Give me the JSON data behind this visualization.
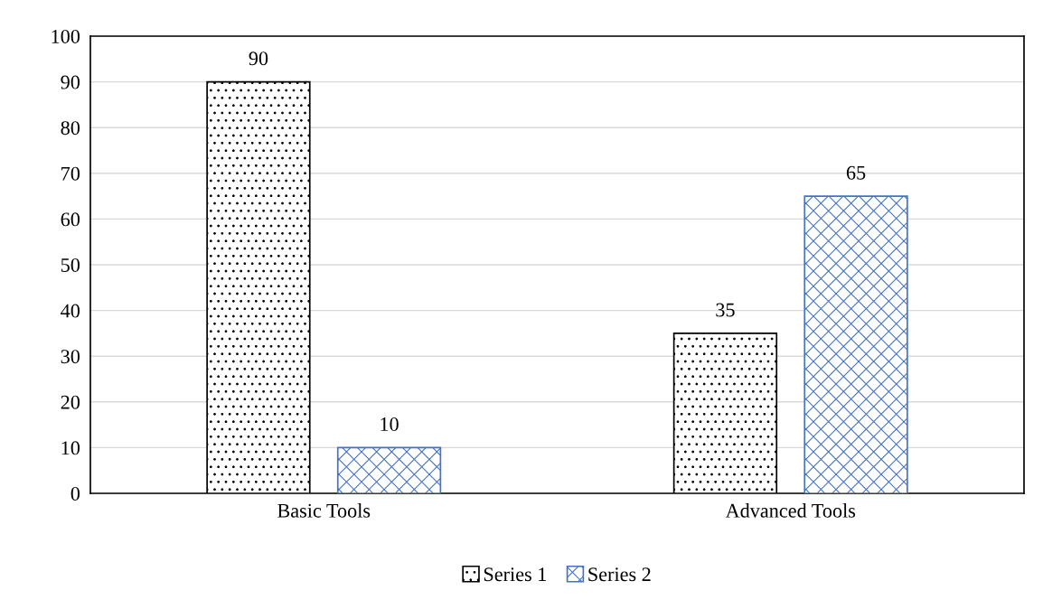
{
  "chart_data": {
    "type": "bar",
    "categories": [
      "Basic Tools",
      "Advanced Tools"
    ],
    "series": [
      {
        "name": "Series 1",
        "color": "#000000",
        "values": [
          90,
          35
        ]
      },
      {
        "name": "Series 2",
        "color": "#4472c4",
        "values": [
          10,
          65
        ]
      }
    ],
    "ylim": [
      0,
      100
    ],
    "yticks": [
      0,
      10,
      20,
      30,
      40,
      50,
      60,
      70,
      80,
      90,
      100
    ],
    "grid": "y",
    "legend": "bottom",
    "data_labels": true
  }
}
